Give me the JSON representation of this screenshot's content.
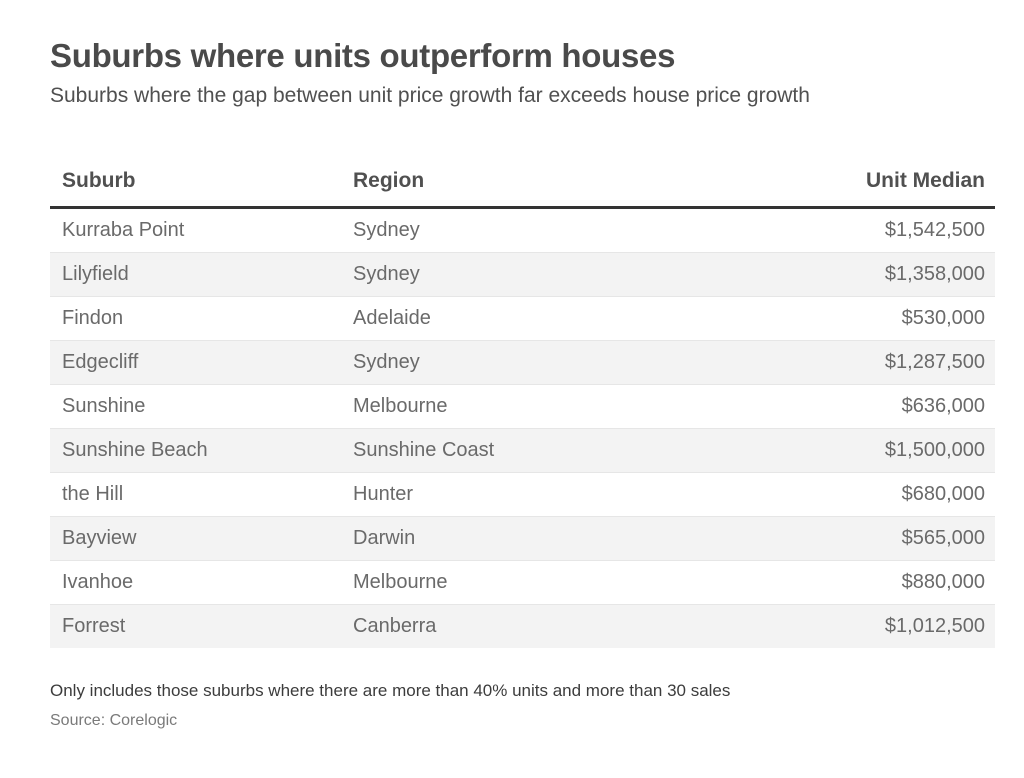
{
  "title": "Suburbs where units outperform houses",
  "subtitle": "Suburbs where the gap between unit price growth far exceeds house price growth",
  "note": "Only includes those suburbs where there are more than 40% units and more than 30 sales",
  "source": "Source: Corelogic",
  "chart_data": {
    "type": "table",
    "columns": [
      "Suburb",
      "Region",
      "Unit Median"
    ],
    "rows": [
      [
        "Kurraba Point",
        "Sydney",
        "$1,542,500"
      ],
      [
        "Lilyfield",
        "Sydney",
        "$1,358,000"
      ],
      [
        "Findon",
        "Adelaide",
        "$530,000"
      ],
      [
        "Edgecliff",
        "Sydney",
        "$1,287,500"
      ],
      [
        "Sunshine",
        "Melbourne",
        "$636,000"
      ],
      [
        "Sunshine Beach",
        "Sunshine Coast",
        "$1,500,000"
      ],
      [
        "the Hill",
        "Hunter",
        "$680,000"
      ],
      [
        "Bayview",
        "Darwin",
        "$565,000"
      ],
      [
        "Ivanhoe",
        "Melbourne",
        "$880,000"
      ],
      [
        "Forrest",
        "Canberra",
        "$1,012,500"
      ]
    ]
  }
}
